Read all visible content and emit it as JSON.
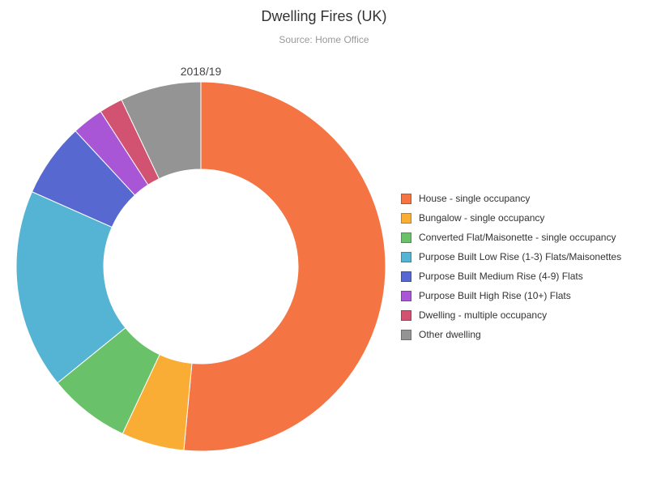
{
  "title": "Dwelling Fires (UK)",
  "subtitle": "Source: Home Office",
  "chart_data": {
    "type": "pie",
    "donut": true,
    "series_label": "2018/19",
    "legend_position": "right",
    "categories": [
      "House - single occupancy",
      "Bungalow - single occupancy",
      "Converted Flat/Maisonette - single occupancy",
      "Purpose Built Low Rise (1-3) Flats/Maisonettes",
      "Purpose Built Medium Rise (4-9) Flats",
      "Purpose Built High Rise (10+) Flats",
      "Dwelling - multiple occupancy",
      "Other dwelling"
    ],
    "values": [
      52.4,
      5.6,
      7.3,
      17.8,
      6.6,
      2.8,
      2.1,
      7.2
    ],
    "colors": [
      "#f47443",
      "#f9ad34",
      "#69c16a",
      "#55b4d3",
      "#5769d1",
      "#a856d6",
      "#d15371",
      "#949494"
    ]
  }
}
